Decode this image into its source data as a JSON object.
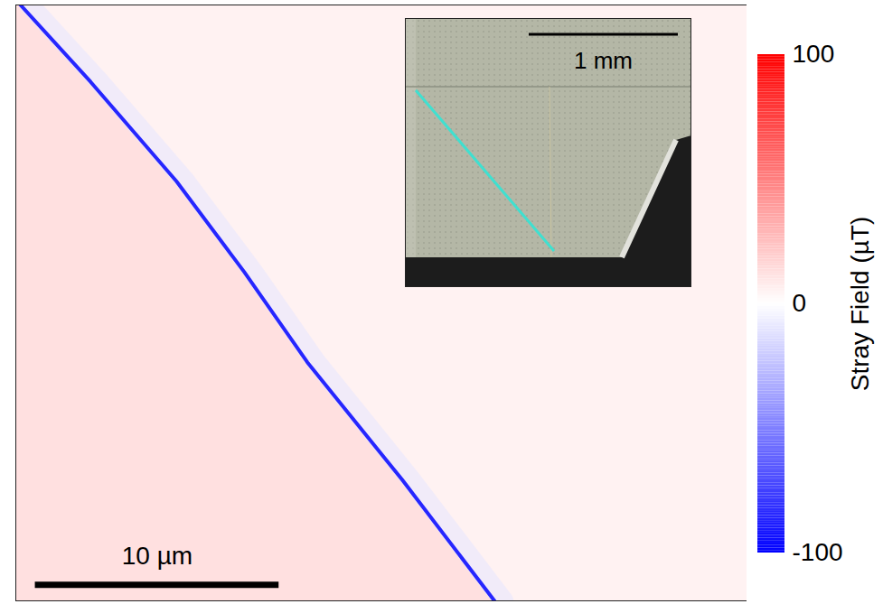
{
  "chart_data": {
    "type": "heatmap",
    "xlim": [
      0,
      30
    ],
    "ylim": [
      0,
      24.4
    ],
    "tick_labels": false,
    "field": {
      "left_of_wall": 12,
      "right_of_wall": 5,
      "wall_halo": -10,
      "wall": -85
    },
    "wall": {
      "x": [
        0.19,
        3.07,
        6.59,
        9.37,
        11.96,
        15.85,
        19.64
      ],
      "y": [
        0,
        3.15,
        7.22,
        10.93,
        14.63,
        19.44,
        24.4
      ]
    },
    "scale_bar": {
      "length": 10,
      "label": "10 µm"
    },
    "colorbar": {
      "label": "Stray Field (µT)",
      "range": [
        -100,
        100
      ],
      "ticks": [
        -100,
        0,
        100
      ]
    },
    "inset": {
      "scale_bar": {
        "length": 1,
        "label": "1 mm"
      }
    }
  }
}
